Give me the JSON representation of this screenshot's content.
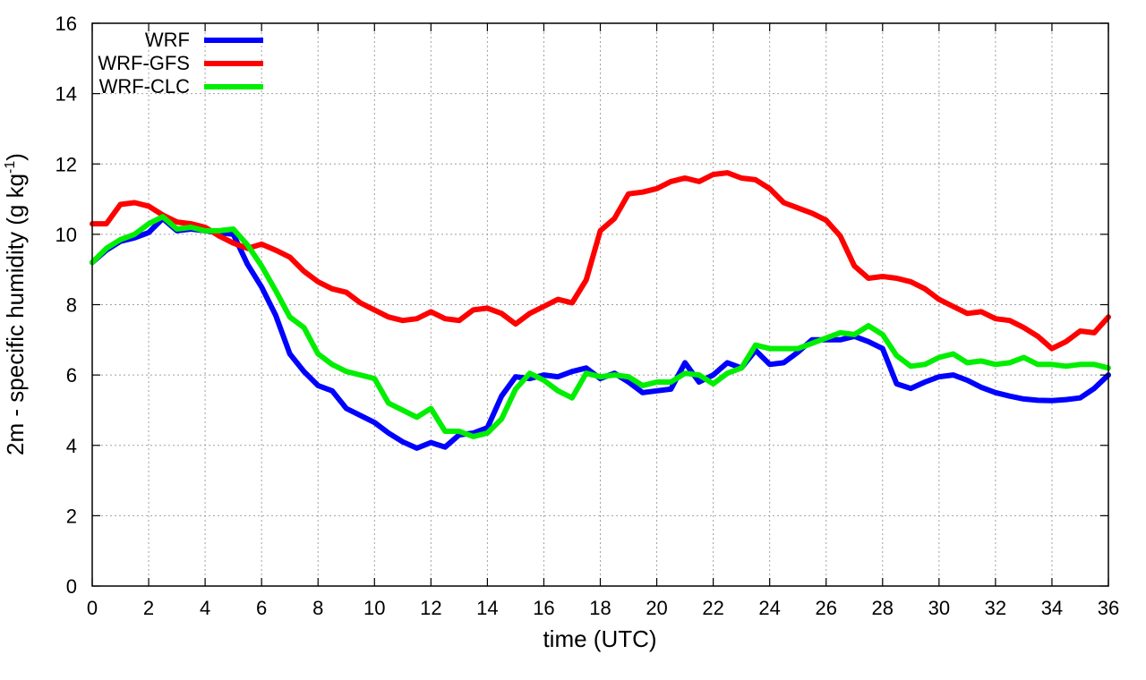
{
  "chart_data": {
    "type": "line",
    "title": "",
    "xlabel": "time (UTC)",
    "ylabel": {
      "main": "2m - specific humidity (g kg",
      "exponent": "-1",
      "close": ")"
    },
    "xlim": [
      0,
      36
    ],
    "ylim": [
      0,
      16
    ],
    "xticks": [
      0,
      2,
      4,
      6,
      8,
      10,
      12,
      14,
      16,
      18,
      20,
      22,
      24,
      26,
      28,
      30,
      32,
      34,
      36
    ],
    "yticks": [
      0,
      2,
      4,
      6,
      8,
      10,
      12,
      14,
      16
    ],
    "xtick_labels": [
      "0",
      "2",
      "4",
      "6",
      "8",
      "10",
      "12",
      "14",
      "16",
      "18",
      "20",
      "22",
      "24",
      "26",
      "28",
      "30",
      "32",
      "34",
      "36"
    ],
    "ytick_labels": [
      "0",
      "2",
      "4",
      "6",
      "8",
      "10",
      "12",
      "14",
      "16"
    ],
    "grid": true,
    "legend_position": "top-left",
    "series": [
      {
        "name": "WRF",
        "color": "#0000ff",
        "x": [
          0,
          0.5,
          1,
          1.5,
          2,
          2.5,
          3,
          3.5,
          4,
          4.5,
          5,
          5.5,
          6,
          6.5,
          7,
          7.5,
          8,
          8.5,
          9,
          9.5,
          10,
          10.5,
          11,
          11.5,
          12,
          12.5,
          13,
          13.5,
          14,
          14.5,
          15,
          15.5,
          16,
          16.5,
          17,
          17.5,
          18,
          18.5,
          19,
          19.5,
          20,
          20.5,
          21,
          21.5,
          22,
          22.5,
          23,
          23.5,
          24,
          24.5,
          25,
          25.5,
          26,
          26.5,
          27,
          27.5,
          28,
          28.5,
          29,
          29.5,
          30,
          30.5,
          31,
          31.5,
          32,
          32.5,
          33,
          33.5,
          34,
          34.5,
          35,
          35.5,
          36
        ],
        "values": [
          9.2,
          9.55,
          9.8,
          9.9,
          10.05,
          10.45,
          10.1,
          10.15,
          10.1,
          10.05,
          10.0,
          9.15,
          8.5,
          7.7,
          6.6,
          6.1,
          5.7,
          5.55,
          5.05,
          4.85,
          4.65,
          4.35,
          4.1,
          3.92,
          4.08,
          3.95,
          4.3,
          4.35,
          4.5,
          5.4,
          5.95,
          5.9,
          6.0,
          5.95,
          6.1,
          6.2,
          5.9,
          6.05,
          5.8,
          5.5,
          5.55,
          5.6,
          6.35,
          5.8,
          6.0,
          6.35,
          6.2,
          6.7,
          6.3,
          6.35,
          6.65,
          7.0,
          7.0,
          7.0,
          7.1,
          6.95,
          6.75,
          5.75,
          5.62,
          5.8,
          5.95,
          6.0,
          5.85,
          5.65,
          5.5,
          5.4,
          5.32,
          5.28,
          5.27,
          5.3,
          5.35,
          5.62,
          6.0
        ]
      },
      {
        "name": "WRF-GFS",
        "color": "#ff0000",
        "x": [
          0,
          0.5,
          1,
          1.5,
          2,
          2.5,
          3,
          3.5,
          4,
          4.5,
          5,
          5.5,
          6,
          6.5,
          7,
          7.5,
          8,
          8.5,
          9,
          9.5,
          10,
          10.5,
          11,
          11.5,
          12,
          12.5,
          13,
          13.5,
          14,
          14.5,
          15,
          15.5,
          16,
          16.5,
          17,
          17.5,
          18,
          18.5,
          19,
          19.5,
          20,
          20.5,
          21,
          21.5,
          22,
          22.5,
          23,
          23.5,
          24,
          24.5,
          25,
          25.5,
          26,
          26.5,
          27,
          27.5,
          28,
          28.5,
          29,
          29.5,
          30,
          30.5,
          31,
          31.5,
          32,
          32.5,
          33,
          33.5,
          34,
          34.5,
          35,
          35.5,
          36
        ],
        "values": [
          10.3,
          10.3,
          10.85,
          10.9,
          10.8,
          10.55,
          10.35,
          10.3,
          10.2,
          9.95,
          9.75,
          9.6,
          9.72,
          9.55,
          9.35,
          8.95,
          8.65,
          8.45,
          8.35,
          8.05,
          7.85,
          7.65,
          7.55,
          7.6,
          7.8,
          7.6,
          7.55,
          7.85,
          7.9,
          7.75,
          7.45,
          7.75,
          7.95,
          8.15,
          8.05,
          8.7,
          10.1,
          10.45,
          11.15,
          11.2,
          11.3,
          11.5,
          11.6,
          11.5,
          11.7,
          11.75,
          11.6,
          11.55,
          11.3,
          10.9,
          10.75,
          10.6,
          10.4,
          9.95,
          9.1,
          8.75,
          8.8,
          8.75,
          8.65,
          8.45,
          8.15,
          7.95,
          7.75,
          7.8,
          7.6,
          7.55,
          7.35,
          7.1,
          6.75,
          6.95,
          7.25,
          7.2,
          7.65
        ]
      },
      {
        "name": "WRF-CLC",
        "color": "#00ee00",
        "x": [
          0,
          0.5,
          1,
          1.5,
          2,
          2.5,
          3,
          3.5,
          4,
          4.5,
          5,
          5.5,
          6,
          6.5,
          7,
          7.5,
          8,
          8.5,
          9,
          9.5,
          10,
          10.5,
          11,
          11.5,
          12,
          12.5,
          13,
          13.5,
          14,
          14.5,
          15,
          15.5,
          16,
          16.5,
          17,
          17.5,
          18,
          18.5,
          19,
          19.5,
          20,
          20.5,
          21,
          21.5,
          22,
          22.5,
          23,
          23.5,
          24,
          24.5,
          25,
          25.5,
          26,
          26.5,
          27,
          27.5,
          28,
          28.5,
          29,
          29.5,
          30,
          30.5,
          31,
          31.5,
          32,
          32.5,
          33,
          33.5,
          34,
          34.5,
          35,
          35.5,
          36
        ],
        "values": [
          9.2,
          9.6,
          9.85,
          10.0,
          10.3,
          10.5,
          10.15,
          10.2,
          10.1,
          10.1,
          10.15,
          9.7,
          9.1,
          8.4,
          7.65,
          7.35,
          6.6,
          6.3,
          6.1,
          6.0,
          5.9,
          5.2,
          5.0,
          4.8,
          5.05,
          4.4,
          4.4,
          4.25,
          4.35,
          4.75,
          5.6,
          6.05,
          5.85,
          5.55,
          5.35,
          6.05,
          5.95,
          6.0,
          5.95,
          5.7,
          5.8,
          5.8,
          6.05,
          6.0,
          5.75,
          6.05,
          6.2,
          6.85,
          6.75,
          6.75,
          6.75,
          6.9,
          7.05,
          7.2,
          7.15,
          7.4,
          7.15,
          6.55,
          6.25,
          6.3,
          6.5,
          6.6,
          6.35,
          6.4,
          6.3,
          6.35,
          6.5,
          6.3,
          6.3,
          6.25,
          6.3,
          6.3,
          6.2
        ]
      }
    ]
  }
}
